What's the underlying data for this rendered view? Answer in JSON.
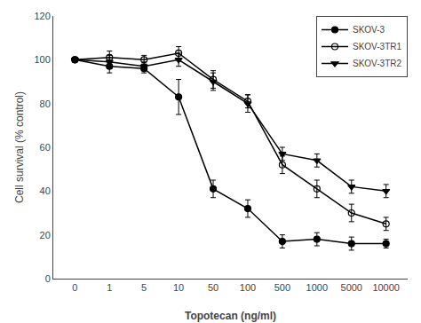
{
  "chart_data": {
    "type": "line",
    "xlabel": "Topotecan (ng/ml)",
    "ylabel": "Cell survival (% control)",
    "categories": [
      "0",
      "1",
      "5",
      "10",
      "50",
      "100",
      "500",
      "1000",
      "5000",
      "10000"
    ],
    "series": [
      {
        "name": "SKOV-3",
        "color": "black",
        "marker": "circle",
        "line_style": "solid",
        "values": [
          100,
          97,
          96,
          83,
          41,
          32,
          17,
          18,
          16,
          16
        ],
        "errors": [
          1,
          3,
          2,
          8,
          4,
          4,
          3,
          3,
          3,
          2
        ]
      },
      {
        "name": "SKOV-3TR1",
        "color": "black",
        "marker": "circle-open",
        "line_style": "solid",
        "values": [
          100,
          101,
          100,
          103,
          91,
          81,
          52,
          41,
          30,
          25
        ],
        "errors": [
          1,
          3,
          2,
          3,
          4,
          3,
          4,
          4,
          4,
          3
        ]
      },
      {
        "name": "SKOV-3TR2",
        "color": "black",
        "marker": "triangle-down",
        "line_style": "solid",
        "values": [
          100,
          99,
          97,
          100,
          90,
          80,
          57,
          54,
          42,
          40
        ],
        "errors": [
          1,
          3,
          2,
          3,
          4,
          4,
          3,
          3,
          3,
          3
        ]
      }
    ],
    "ylim": [
      0,
      120
    ],
    "yticks": [
      0,
      20,
      40,
      60,
      80,
      100,
      120
    ],
    "grid": false,
    "legend": "upper right"
  }
}
